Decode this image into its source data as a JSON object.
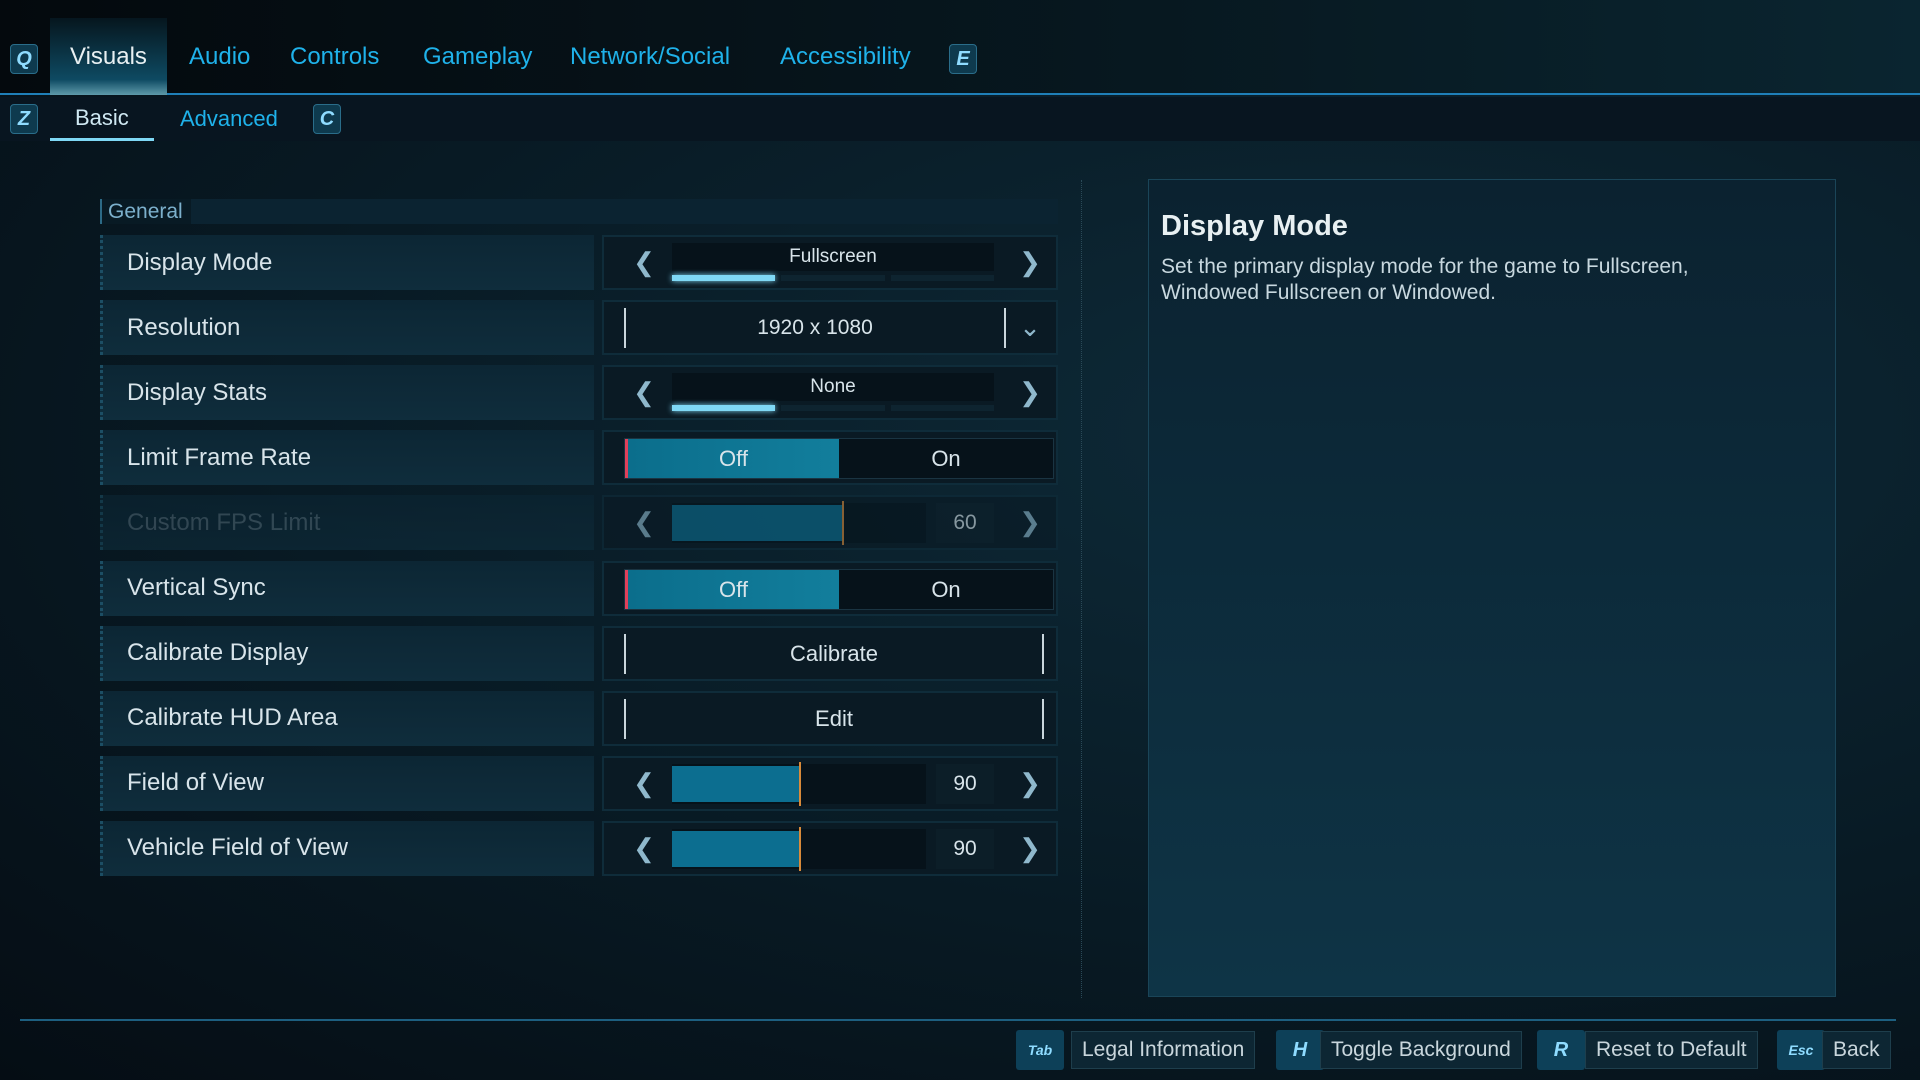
{
  "tabs": {
    "prev_key": "Q",
    "next_key": "E",
    "items": [
      {
        "label": "Visuals",
        "active": true
      },
      {
        "label": "Audio"
      },
      {
        "label": "Controls"
      },
      {
        "label": "Gameplay"
      },
      {
        "label": "Network/Social"
      },
      {
        "label": "Accessibility"
      }
    ]
  },
  "subtabs": {
    "prev_key": "Z",
    "next_key": "C",
    "items": [
      {
        "label": "Basic",
        "active": true
      },
      {
        "label": "Advanced"
      }
    ]
  },
  "section": "General",
  "settings": [
    {
      "label": "Display Mode",
      "type": "cycler",
      "value": "Fullscreen",
      "option_index": 0,
      "option_count": 3
    },
    {
      "label": "Resolution",
      "type": "dropdown",
      "value": "1920 x 1080"
    },
    {
      "label": "Display Stats",
      "type": "cycler",
      "value": "None",
      "option_index": 0,
      "option_count": 3
    },
    {
      "label": "Limit Frame Rate",
      "type": "toggle",
      "off": "Off",
      "on": "On",
      "value": "Off"
    },
    {
      "label": "Custom FPS Limit",
      "type": "slider",
      "value": "60",
      "fill_percent": 67,
      "disabled": true
    },
    {
      "label": "Vertical Sync",
      "type": "toggle",
      "off": "Off",
      "on": "On",
      "value": "Off"
    },
    {
      "label": "Calibrate Display",
      "type": "button",
      "value": "Calibrate"
    },
    {
      "label": "Calibrate HUD Area",
      "type": "button",
      "value": "Edit"
    },
    {
      "label": "Field of View",
      "type": "slider",
      "value": "90",
      "fill_percent": 50
    },
    {
      "label": "Vehicle Field of View",
      "type": "slider",
      "value": "90",
      "fill_percent": 50
    }
  ],
  "description": {
    "title": "Display Mode",
    "text": "Set the primary display mode for the game to Fullscreen, Windowed Fullscreen or Windowed."
  },
  "footer": [
    {
      "key": "Tab",
      "label": "Legal Information"
    },
    {
      "key": "H",
      "label": "Toggle Background"
    },
    {
      "key": "R",
      "label": "Reset to Default"
    },
    {
      "key": "Esc",
      "label": "Back"
    }
  ],
  "colors": {
    "accent": "#1fb2ea",
    "toggle_on": "#0b6e8c",
    "marker": "#e0405a"
  }
}
